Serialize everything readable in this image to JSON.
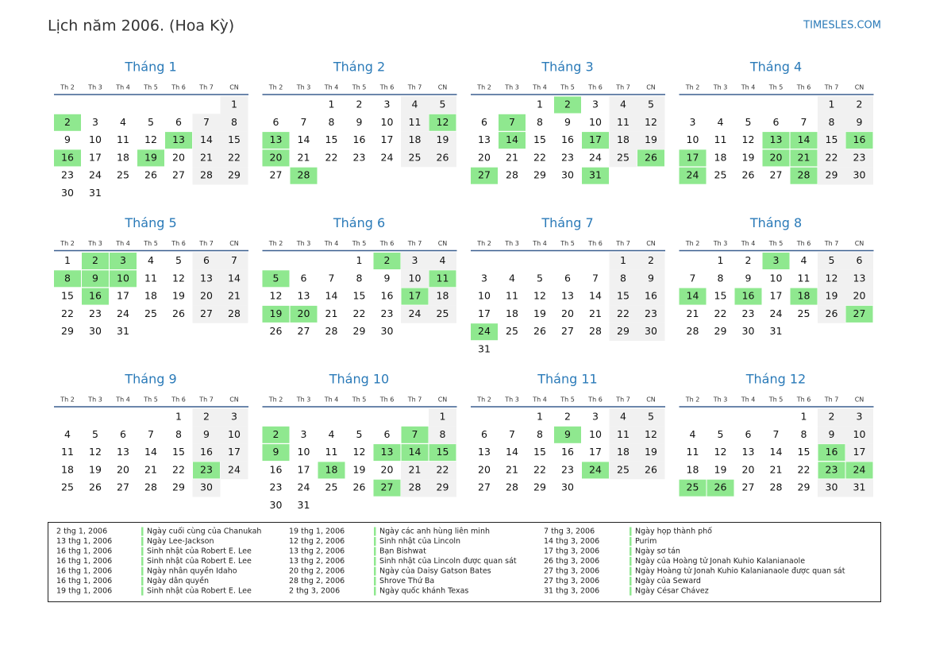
{
  "header": {
    "title": "Lịch năm 2006. (Hoa Kỳ)",
    "site": "TIMESLES.COM"
  },
  "weekdays": [
    "Th 2",
    "Th 3",
    "Th 4",
    "Th 5",
    "Th 6",
    "Th 7",
    "CN"
  ],
  "months": [
    {
      "name": "Tháng 1",
      "days": [
        null,
        null,
        null,
        null,
        null,
        null,
        1,
        2,
        3,
        4,
        5,
        6,
        7,
        8,
        9,
        10,
        11,
        12,
        13,
        14,
        15,
        16,
        17,
        18,
        19,
        20,
        21,
        22,
        23,
        24,
        25,
        26,
        27,
        28,
        29,
        30,
        31
      ],
      "highlighted": [
        2,
        13,
        16,
        19
      ]
    },
    {
      "name": "Tháng 2",
      "days": [
        null,
        null,
        1,
        2,
        3,
        4,
        5,
        6,
        7,
        8,
        9,
        10,
        11,
        12,
        13,
        14,
        15,
        16,
        17,
        18,
        19,
        20,
        21,
        22,
        23,
        24,
        25,
        26,
        27,
        28
      ],
      "highlighted": [
        12,
        13,
        20,
        28
      ]
    },
    {
      "name": "Tháng 3",
      "days": [
        null,
        null,
        1,
        2,
        3,
        4,
        5,
        6,
        7,
        8,
        9,
        10,
        11,
        12,
        13,
        14,
        15,
        16,
        17,
        18,
        19,
        20,
        21,
        22,
        23,
        24,
        25,
        26,
        27,
        28,
        29,
        30,
        31
      ],
      "highlighted": [
        2,
        7,
        14,
        17,
        26,
        27,
        31
      ]
    },
    {
      "name": "Tháng 4",
      "days": [
        null,
        null,
        null,
        null,
        null,
        1,
        2,
        3,
        4,
        5,
        6,
        7,
        8,
        9,
        10,
        11,
        12,
        13,
        14,
        15,
        16,
        17,
        18,
        19,
        20,
        21,
        22,
        23,
        24,
        25,
        26,
        27,
        28,
        29,
        30
      ],
      "highlighted": [
        13,
        14,
        16,
        17,
        20,
        21,
        24,
        28
      ]
    },
    {
      "name": "Tháng 5",
      "days": [
        1,
        2,
        3,
        4,
        5,
        6,
        7,
        8,
        9,
        10,
        11,
        12,
        13,
        14,
        15,
        16,
        17,
        18,
        19,
        20,
        21,
        22,
        23,
        24,
        25,
        26,
        27,
        28,
        29,
        30,
        31
      ],
      "highlighted": [
        2,
        3,
        8,
        9,
        10,
        16
      ]
    },
    {
      "name": "Tháng 6",
      "days": [
        null,
        null,
        null,
        1,
        2,
        3,
        4,
        5,
        6,
        7,
        8,
        9,
        10,
        11,
        12,
        13,
        14,
        15,
        16,
        17,
        18,
        19,
        20,
        21,
        22,
        23,
        24,
        25,
        26,
        27,
        28,
        29,
        30
      ],
      "highlighted": [
        2,
        5,
        11,
        17,
        19,
        20
      ]
    },
    {
      "name": "Tháng 7",
      "days": [
        null,
        null,
        null,
        null,
        null,
        1,
        2,
        3,
        4,
        5,
        6,
        7,
        8,
        9,
        10,
        11,
        12,
        13,
        14,
        15,
        16,
        17,
        18,
        19,
        20,
        21,
        22,
        23,
        24,
        25,
        26,
        27,
        28,
        29,
        30,
        31
      ],
      "highlighted": [
        24
      ]
    },
    {
      "name": "Tháng 8",
      "days": [
        null,
        1,
        2,
        3,
        4,
        5,
        6,
        7,
        8,
        9,
        10,
        11,
        12,
        13,
        14,
        15,
        16,
        17,
        18,
        19,
        20,
        21,
        22,
        23,
        24,
        25,
        26,
        27,
        28,
        29,
        30,
        31
      ],
      "highlighted": [
        3,
        14,
        16,
        18,
        27
      ]
    },
    {
      "name": "Tháng 9",
      "days": [
        null,
        null,
        null,
        null,
        1,
        2,
        3,
        4,
        5,
        6,
        7,
        8,
        9,
        10,
        11,
        12,
        13,
        14,
        15,
        16,
        17,
        18,
        19,
        20,
        21,
        22,
        23,
        24,
        25,
        26,
        27,
        28,
        29,
        30
      ],
      "highlighted": [
        23
      ]
    },
    {
      "name": "Tháng 10",
      "days": [
        null,
        null,
        null,
        null,
        null,
        null,
        1,
        2,
        3,
        4,
        5,
        6,
        7,
        8,
        9,
        10,
        11,
        12,
        13,
        14,
        15,
        16,
        17,
        18,
        19,
        20,
        21,
        22,
        23,
        24,
        25,
        26,
        27,
        28,
        29,
        30,
        31
      ],
      "highlighted": [
        2,
        7,
        9,
        13,
        14,
        15,
        18,
        27
      ]
    },
    {
      "name": "Tháng 11",
      "days": [
        null,
        null,
        1,
        2,
        3,
        4,
        5,
        6,
        7,
        8,
        9,
        10,
        11,
        12,
        13,
        14,
        15,
        16,
        17,
        18,
        19,
        20,
        21,
        22,
        23,
        24,
        25,
        26,
        27,
        28,
        29,
        30
      ],
      "highlighted": [
        9,
        24
      ]
    },
    {
      "name": "Tháng 12",
      "days": [
        null,
        null,
        null,
        null,
        1,
        2,
        3,
        4,
        5,
        6,
        7,
        8,
        9,
        10,
        11,
        12,
        13,
        14,
        15,
        16,
        17,
        18,
        19,
        20,
        21,
        22,
        23,
        24,
        25,
        26,
        27,
        28,
        29,
        30,
        31
      ],
      "highlighted": [
        16,
        23,
        24,
        25,
        26
      ]
    }
  ],
  "holidays": [
    [
      {
        "date": "2 thg 1, 2006",
        "name": "Ngày cuối cùng của Chanukah"
      },
      {
        "date": "13 thg 1, 2006",
        "name": "Ngày Lee-Jackson"
      },
      {
        "date": "16 thg 1, 2006",
        "name": "Sinh nhật của Robert E. Lee"
      },
      {
        "date": "16 thg 1, 2006",
        "name": "Sinh nhật của Robert E. Lee"
      },
      {
        "date": "16 thg 1, 2006",
        "name": "Ngày nhân quyền Idaho"
      },
      {
        "date": "16 thg 1, 2006",
        "name": "Ngày dân quyền"
      },
      {
        "date": "19 thg 1, 2006",
        "name": "Sinh nhật của Robert E. Lee"
      }
    ],
    [
      {
        "date": "19 thg 1, 2006",
        "name": "Ngày các anh hùng liên minh"
      },
      {
        "date": "12 thg 2, 2006",
        "name": "Sinh nhật của Lincoln"
      },
      {
        "date": "13 thg 2, 2006",
        "name": "Bạn Bishwat"
      },
      {
        "date": "13 thg 2, 2006",
        "name": "Sinh nhật của Lincoln được quan sát"
      },
      {
        "date": "20 thg 2, 2006",
        "name": "Ngày của Daisy Gatson Bates"
      },
      {
        "date": "28 thg 2, 2006",
        "name": "Shrove Thứ Ba"
      },
      {
        "date": "2 thg 3, 2006",
        "name": "Ngày quốc khánh Texas"
      }
    ],
    [
      {
        "date": "7 thg 3, 2006",
        "name": "Ngày họp thành phố"
      },
      {
        "date": "14 thg 3, 2006",
        "name": "Purim"
      },
      {
        "date": "17 thg 3, 2006",
        "name": "Ngày sơ tán"
      },
      {
        "date": "26 thg 3, 2006",
        "name": "Ngày của Hoàng tử Jonah Kuhio Kalanianaole"
      },
      {
        "date": "27 thg 3, 2006",
        "name": "Ngày Hoàng tử Jonah Kuhio Kalanianaole được quan sát"
      },
      {
        "date": "27 thg 3, 2006",
        "name": "Ngày của Seward"
      },
      {
        "date": "31 thg 3, 2006",
        "name": "Ngày César Chávez"
      }
    ]
  ]
}
